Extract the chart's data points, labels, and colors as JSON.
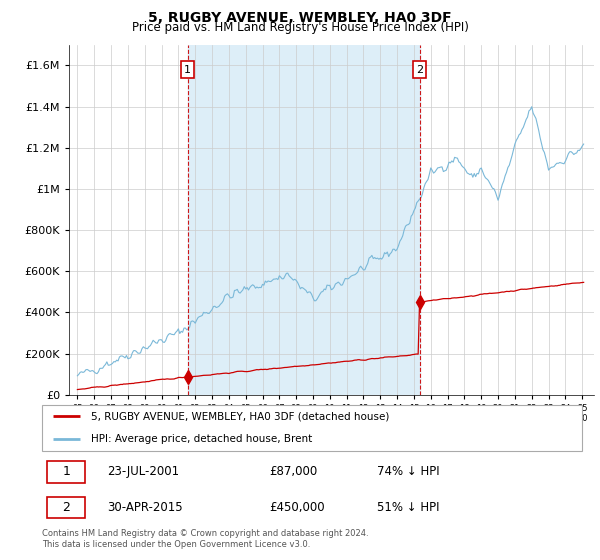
{
  "title": "5, RUGBY AVENUE, WEMBLEY, HA0 3DF",
  "subtitle": "Price paid vs. HM Land Registry's House Price Index (HPI)",
  "legend_line1": "5, RUGBY AVENUE, WEMBLEY, HA0 3DF (detached house)",
  "legend_line2": "HPI: Average price, detached house, Brent",
  "footnote": "Contains HM Land Registry data © Crown copyright and database right 2024.\nThis data is licensed under the Open Government Licence v3.0.",
  "transaction1": {
    "label": "1",
    "date": "23-JUL-2001",
    "price": 87000,
    "pct": "74% ↓ HPI",
    "x_year": 2001.55
  },
  "transaction2": {
    "label": "2",
    "date": "30-APR-2015",
    "price": 450000,
    "pct": "51% ↓ HPI",
    "x_year": 2015.33
  },
  "red_color": "#cc0000",
  "blue_color": "#7ab8d8",
  "shade_color": "#ddeef8",
  "background_color": "#ffffff",
  "ylim": [
    0,
    1700000
  ],
  "xlim_start": 1994.5,
  "xlim_end": 2025.7,
  "years_start": 1995,
  "years_end": 2025
}
